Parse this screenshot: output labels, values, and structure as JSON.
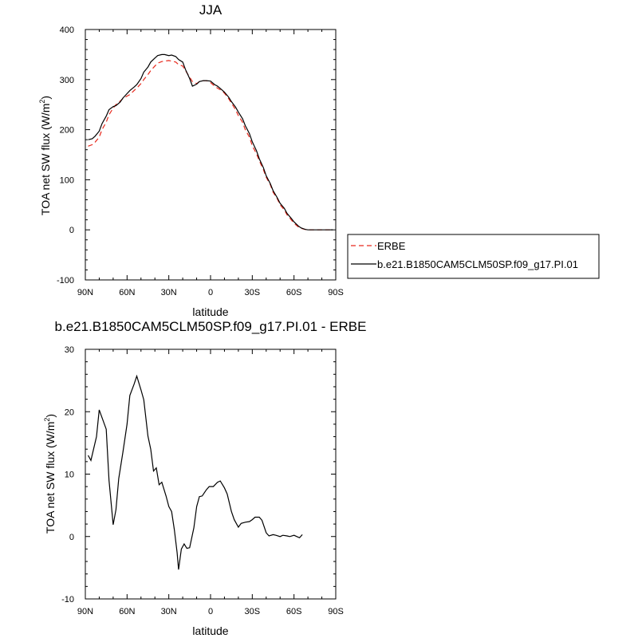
{
  "chart_data": [
    {
      "type": "line",
      "title": "JJA",
      "xlabel": "latitude",
      "ylabel_main": "TOA net SW flux (W/m",
      "ylabel_sup": "2",
      "ylabel_close": ")",
      "xlim": [
        90,
        -90
      ],
      "ylim": [
        -100,
        400
      ],
      "xticks": [
        {
          "value": 90,
          "label": "90N"
        },
        {
          "value": 60,
          "label": "60N"
        },
        {
          "value": 30,
          "label": "30N"
        },
        {
          "value": 0,
          "label": "0"
        },
        {
          "value": -30,
          "label": "30S"
        },
        {
          "value": -60,
          "label": "60S"
        },
        {
          "value": -90,
          "label": "90S"
        }
      ],
      "yticks": [
        {
          "value": -100,
          "label": "-100"
        },
        {
          "value": 0,
          "label": "0"
        },
        {
          "value": 100,
          "label": "100"
        },
        {
          "value": 200,
          "label": "200"
        },
        {
          "value": 300,
          "label": "300"
        },
        {
          "value": 400,
          "label": "400"
        }
      ],
      "legend_position": "right",
      "series": [
        {
          "name": "ERBE",
          "color": "#e8291c",
          "dash": "dashed",
          "points": [
            [
              88,
              167
            ],
            [
              85,
              170
            ],
            [
              83,
              175
            ],
            [
              80,
              185
            ],
            [
              78,
              200
            ],
            [
              75,
              215
            ],
            [
              73,
              230
            ],
            [
              70,
              243
            ],
            [
              68,
              250
            ],
            [
              65,
              257
            ],
            [
              63,
              262
            ],
            [
              60,
              267
            ],
            [
              58,
              270
            ],
            [
              55,
              278
            ],
            [
              53,
              283
            ],
            [
              50,
              292
            ],
            [
              48,
              300
            ],
            [
              45,
              310
            ],
            [
              43,
              318
            ],
            [
              40,
              327
            ],
            [
              38,
              333
            ],
            [
              35,
              336
            ],
            [
              33,
              337
            ],
            [
              30,
              338
            ],
            [
              28,
              337
            ],
            [
              25,
              335
            ],
            [
              23,
              330
            ],
            [
              20,
              327
            ],
            [
              18,
              318
            ],
            [
              15,
              305
            ],
            [
              13,
              296
            ],
            [
              10,
              292
            ],
            [
              8,
              296
            ],
            [
              5,
              298
            ],
            [
              3,
              298
            ],
            [
              0,
              294
            ],
            [
              -3,
              287
            ],
            [
              -5,
              283
            ],
            [
              -8,
              278
            ],
            [
              -10,
              273
            ],
            [
              -13,
              262
            ],
            [
              -15,
              253
            ],
            [
              -18,
              240
            ],
            [
              -20,
              228
            ],
            [
              -23,
              215
            ],
            [
              -25,
              200
            ],
            [
              -28,
              185
            ],
            [
              -30,
              168
            ],
            [
              -33,
              152
            ],
            [
              -35,
              138
            ],
            [
              -38,
              120
            ],
            [
              -40,
              105
            ],
            [
              -43,
              90
            ],
            [
              -45,
              75
            ],
            [
              -48,
              62
            ],
            [
              -50,
              50
            ],
            [
              -53,
              40
            ],
            [
              -55,
              30
            ],
            [
              -58,
              20
            ],
            [
              -60,
              13
            ],
            [
              -63,
              6
            ],
            [
              -65,
              3
            ],
            [
              -68,
              1
            ],
            [
              -70,
              0
            ],
            [
              -75,
              0
            ],
            [
              -80,
              0
            ],
            [
              -85,
              0
            ],
            [
              -88,
              0
            ]
          ]
        },
        {
          "name": "b.e21.B1850CAM5CLM50SP.f09_g17.PI.01",
          "color": "#000000",
          "dash": "solid",
          "points": [
            [
              88,
              180
            ],
            [
              85,
              182
            ],
            [
              83,
              187
            ],
            [
              80,
              197
            ],
            [
              78,
              212
            ],
            [
              75,
              227
            ],
            [
              73,
              240
            ],
            [
              70,
              246
            ],
            [
              68,
              248
            ],
            [
              65,
              255
            ],
            [
              63,
              263
            ],
            [
              60,
              272
            ],
            [
              58,
              278
            ],
            [
              55,
              285
            ],
            [
              53,
              290
            ],
            [
              50,
              302
            ],
            [
              48,
              315
            ],
            [
              45,
              325
            ],
            [
              43,
              335
            ],
            [
              40,
              343
            ],
            [
              38,
              348
            ],
            [
              35,
              350
            ],
            [
              33,
              350
            ],
            [
              30,
              348
            ],
            [
              28,
              349
            ],
            [
              25,
              346
            ],
            [
              23,
              340
            ],
            [
              20,
              335
            ],
            [
              18,
              320
            ],
            [
              15,
              302
            ],
            [
              13,
              287
            ],
            [
              10,
              291
            ],
            [
              8,
              296
            ],
            [
              5,
              298
            ],
            [
              3,
              298
            ],
            [
              0,
              297
            ],
            [
              -3,
              290
            ],
            [
              -5,
              287
            ],
            [
              -8,
              280
            ],
            [
              -10,
              275
            ],
            [
              -13,
              265
            ],
            [
              -15,
              256
            ],
            [
              -18,
              245
            ],
            [
              -20,
              235
            ],
            [
              -23,
              222
            ],
            [
              -25,
              208
            ],
            [
              -28,
              192
            ],
            [
              -30,
              176
            ],
            [
              -33,
              158
            ],
            [
              -35,
              142
            ],
            [
              -38,
              124
            ],
            [
              -40,
              108
            ],
            [
              -43,
              92
            ],
            [
              -45,
              78
            ],
            [
              -48,
              64
            ],
            [
              -50,
              53
            ],
            [
              -53,
              43
            ],
            [
              -55,
              33
            ],
            [
              -58,
              23
            ],
            [
              -60,
              16
            ],
            [
              -63,
              8
            ],
            [
              -65,
              4
            ],
            [
              -68,
              1
            ],
            [
              -70,
              0
            ],
            [
              -75,
              0
            ],
            [
              -80,
              0
            ],
            [
              -85,
              0
            ],
            [
              -88,
              0
            ]
          ]
        }
      ]
    },
    {
      "type": "line",
      "title": "b.e21.B1850CAM5CLM50SP.f09_g17.PI.01 - ERBE",
      "xlabel": "latitude",
      "ylabel_main": "TOA net SW flux (W/m",
      "ylabel_sup": "2",
      "ylabel_close": ")",
      "xlim": [
        90,
        -90
      ],
      "ylim": [
        -10,
        30
      ],
      "xticks": [
        {
          "value": 90,
          "label": "90N"
        },
        {
          "value": 60,
          "label": "60N"
        },
        {
          "value": 30,
          "label": "30N"
        },
        {
          "value": 0,
          "label": "0"
        },
        {
          "value": -30,
          "label": "30S"
        },
        {
          "value": -60,
          "label": "60S"
        },
        {
          "value": -90,
          "label": "90S"
        }
      ],
      "yticks": [
        {
          "value": -10,
          "label": "-10"
        },
        {
          "value": 0,
          "label": "0"
        },
        {
          "value": 10,
          "label": "10"
        },
        {
          "value": 20,
          "label": "20"
        },
        {
          "value": 30,
          "label": "30"
        }
      ],
      "series": [
        {
          "color": "#000000",
          "dash": "solid",
          "points": [
            [
              88,
              13.0
            ],
            [
              86,
              12.2
            ],
            [
              82,
              16.0
            ],
            [
              80,
              20.3
            ],
            [
              75,
              17.2
            ],
            [
              73,
              9.0
            ],
            [
              70,
              1.9
            ],
            [
              68,
              4.3
            ],
            [
              66,
              9.3
            ],
            [
              63,
              13.5
            ],
            [
              60,
              18.0
            ],
            [
              58,
              22.6
            ],
            [
              55,
              24.4
            ],
            [
              53,
              25.7
            ],
            [
              50,
              23.5
            ],
            [
              48,
              21.9
            ],
            [
              45,
              16.1
            ],
            [
              43,
              14.0
            ],
            [
              41,
              10.5
            ],
            [
              39,
              11.0
            ],
            [
              37,
              8.3
            ],
            [
              35,
              8.7
            ],
            [
              32,
              6.5
            ],
            [
              30,
              4.8
            ],
            [
              28,
              4.0
            ],
            [
              26,
              1.1
            ],
            [
              24,
              -2.6
            ],
            [
              23,
              -5.3
            ],
            [
              21,
              -2.0
            ],
            [
              19,
              -1.2
            ],
            [
              17,
              -1.9
            ],
            [
              15,
              -1.8
            ],
            [
              12,
              1.4
            ],
            [
              10,
              4.8
            ],
            [
              8,
              6.4
            ],
            [
              6,
              6.5
            ],
            [
              3,
              7.5
            ],
            [
              1,
              8.0
            ],
            [
              -2,
              8.0
            ],
            [
              -5,
              8.7
            ],
            [
              -7,
              8.9
            ],
            [
              -10,
              7.8
            ],
            [
              -12,
              6.8
            ],
            [
              -15,
              4.0
            ],
            [
              -17,
              2.7
            ],
            [
              -20,
              1.5
            ],
            [
              -22,
              2.1
            ],
            [
              -25,
              2.3
            ],
            [
              -28,
              2.4
            ],
            [
              -30,
              2.7
            ],
            [
              -32,
              3.1
            ],
            [
              -35,
              3.1
            ],
            [
              -37,
              2.6
            ],
            [
              -40,
              0.6
            ],
            [
              -42,
              0.1
            ],
            [
              -45,
              0.3
            ],
            [
              -47,
              0.2
            ],
            [
              -50,
              0.0
            ],
            [
              -52,
              0.2
            ],
            [
              -55,
              0.1
            ],
            [
              -57,
              0.0
            ],
            [
              -60,
              0.2
            ],
            [
              -62,
              0.0
            ],
            [
              -64,
              -0.2
            ],
            [
              -66,
              0.3
            ]
          ]
        }
      ]
    }
  ]
}
